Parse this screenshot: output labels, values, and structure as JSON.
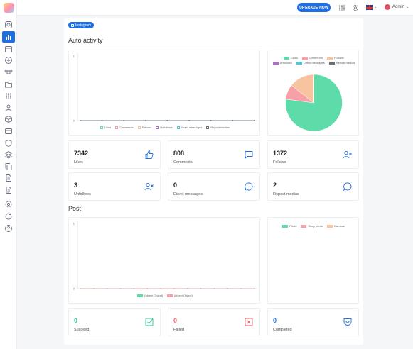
{
  "topbar": {
    "upgrade_label": "UPGRADE NOW",
    "user_name": "Admin"
  },
  "sidebar": {
    "items": [
      {
        "icon": "instagram-icon"
      },
      {
        "icon": "bar-chart-icon",
        "active": true
      },
      {
        "icon": "calendar-icon"
      },
      {
        "icon": "plus-circle-icon"
      },
      {
        "icon": "command-icon"
      },
      {
        "icon": "folder-icon"
      },
      {
        "icon": "sliders-icon"
      },
      {
        "icon": "user-icon"
      },
      {
        "icon": "box-icon"
      },
      {
        "icon": "credit-card-icon"
      },
      {
        "icon": "shield-icon"
      },
      {
        "icon": "layers-icon"
      },
      {
        "icon": "copy-icon"
      },
      {
        "icon": "file-icon"
      },
      {
        "icon": "file-text-icon"
      },
      {
        "icon": "settings-icon"
      },
      {
        "icon": "refresh-icon"
      },
      {
        "icon": "help-icon"
      }
    ]
  },
  "page": {
    "badge_label": "Instagram",
    "auto_activity_title": "Auto activity",
    "post_title": "Post"
  },
  "colors": {
    "accent": "#1f6fe0",
    "likes": "#5ddcaa",
    "comments": "#f7a0a8",
    "follows": "#f8c4a0",
    "unfollows": "#b06cc8",
    "direct_messages": "#4fc6dc",
    "repost_medias": "#6b6f76"
  },
  "auto_stats": [
    {
      "value": "7342",
      "label": "Likes",
      "icon": "thumbs-up-icon"
    },
    {
      "value": "808",
      "label": "Comments",
      "icon": "message-square-icon"
    },
    {
      "value": "1372",
      "label": "Follows",
      "icon": "user-plus-icon"
    },
    {
      "value": "3",
      "label": "Unfollows",
      "icon": "user-x-icon"
    },
    {
      "value": "0",
      "label": "Direct messages",
      "icon": "message-circle-icon"
    },
    {
      "value": "2",
      "label": "Repost medias",
      "icon": "message-circle-icon"
    }
  ],
  "post_stats": [
    {
      "value": "0",
      "label": "Succeed",
      "icon": "check-square-icon",
      "color": "#2fc48d"
    },
    {
      "value": "0",
      "label": "Failed",
      "icon": "x-square-icon",
      "color": "#f06070"
    },
    {
      "value": "0",
      "label": "Completed",
      "icon": "pocket-icon",
      "color": "#1f6fe0"
    }
  ],
  "chart_data": [
    {
      "type": "line",
      "ylim": [
        0,
        1
      ],
      "y_ticks": [
        "0",
        "1"
      ],
      "points_per_series": 9,
      "series": [
        {
          "name": "Likes",
          "values": [
            0,
            0,
            0,
            0,
            0,
            0,
            0,
            0,
            0
          ]
        },
        {
          "name": "Comments",
          "values": [
            0,
            0,
            0,
            0,
            0,
            0,
            0,
            0,
            0
          ]
        },
        {
          "name": "Follows",
          "values": [
            0,
            0,
            0,
            0,
            0,
            0,
            0,
            0,
            0
          ]
        },
        {
          "name": "Unfollows",
          "values": [
            0,
            0,
            0,
            0,
            0,
            0,
            0,
            0,
            0
          ]
        },
        {
          "name": "Direct messages",
          "values": [
            0,
            0,
            0,
            0,
            0,
            0,
            0,
            0,
            0
          ]
        },
        {
          "name": "Repost medias",
          "values": [
            0,
            0,
            0,
            0,
            0,
            0,
            0,
            0,
            0
          ]
        }
      ]
    },
    {
      "type": "pie",
      "legend_position": "top",
      "categories": [
        "Likes",
        "Comments",
        "Follows",
        "Unfollows",
        "Direct messages",
        "Repost medias"
      ],
      "values": [
        7342,
        808,
        1372,
        3,
        0,
        2
      ]
    },
    {
      "type": "line",
      "ylim": [
        0,
        1
      ],
      "y_ticks": [
        "0",
        "1"
      ],
      "points_per_series": 14,
      "series": [
        {
          "name": "Succeed",
          "values": [
            0,
            0,
            0,
            0,
            0,
            0,
            0,
            0,
            0,
            0,
            0,
            0,
            0,
            0
          ]
        },
        {
          "name": "Failed",
          "values": [
            0,
            0,
            0,
            0,
            0,
            0,
            0,
            0,
            0,
            0,
            0,
            0,
            0,
            0
          ]
        }
      ]
    },
    {
      "type": "pie",
      "legend_position": "top",
      "categories": [
        "Photo",
        "Story photo",
        "Carousel"
      ],
      "values": [
        0,
        0,
        0
      ]
    }
  ]
}
